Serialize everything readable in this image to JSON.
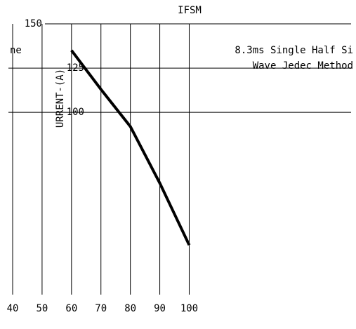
{
  "chart_data": {
    "type": "line",
    "title": "IFSM",
    "y_label": "URRENT-(A)",
    "legend_fragment": "ne",
    "annotation": [
      "8.3ms Single Half Si",
      "Wave Jedec Method"
    ],
    "x": [
      60,
      70,
      80,
      90,
      100
    ],
    "series": [
      {
        "name": "IFSM",
        "color": "#000000",
        "values": [
          135,
          113,
          92,
          60,
          25
        ]
      }
    ],
    "xlim": [
      40,
      155
    ],
    "xticks": [
      40,
      50,
      60,
      70,
      80,
      90,
      100
    ],
    "ylim": [
      20,
      150
    ],
    "yticks": [
      100,
      125,
      150
    ],
    "grid": true
  }
}
